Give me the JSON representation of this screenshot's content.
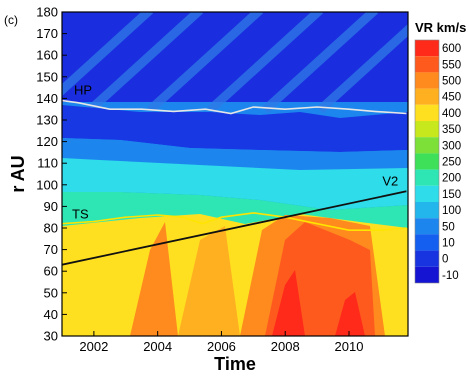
{
  "chart_data": {
    "type": "heatmap",
    "panel_label": "(c)",
    "xlabel": "Time",
    "ylabel": "r AU",
    "xlim": [
      2001.0,
      2011.85
    ],
    "ylim": [
      30,
      180
    ],
    "x_ticks": [
      2002,
      2004,
      2006,
      2008,
      2010
    ],
    "y_ticks": [
      30,
      40,
      50,
      60,
      70,
      80,
      90,
      100,
      110,
      120,
      130,
      140,
      150,
      160,
      170,
      180
    ],
    "colorbar": {
      "title": "VR km/s",
      "levels": [
        600,
        550,
        500,
        450,
        400,
        350,
        300,
        250,
        200,
        150,
        100,
        50,
        10,
        0,
        -10
      ],
      "colors": [
        "#ff2a1a",
        "#ff5a1e",
        "#ff8a1e",
        "#ffb020",
        "#ffe020",
        "#c8e81e",
        "#7ce038",
        "#3ee05a",
        "#2ee6b4",
        "#2edcea",
        "#22b6ec",
        "#1c86ee",
        "#145ef0",
        "#1834e0",
        "#1414d2"
      ]
    },
    "lines": [
      {
        "name": "HP",
        "label": "HP",
        "color": "#e6e6e6",
        "points": [
          [
            2001.0,
            139
          ],
          [
            2001.5,
            138
          ],
          [
            2002.5,
            135
          ],
          [
            2003.5,
            135
          ],
          [
            2004.5,
            134
          ],
          [
            2005.5,
            135
          ],
          [
            2006.3,
            133
          ],
          [
            2007.0,
            136
          ],
          [
            2008.0,
            135
          ],
          [
            2009.0,
            136
          ],
          [
            2010.0,
            135
          ],
          [
            2010.8,
            134
          ],
          [
            2011.8,
            133
          ]
        ]
      },
      {
        "name": "TS",
        "label": "TS",
        "color": "#ffe400",
        "points": [
          [
            2001.0,
            82
          ],
          [
            2002.0,
            83
          ],
          [
            2003.0,
            85
          ],
          [
            2004.0,
            86
          ],
          [
            2004.8,
            85
          ],
          [
            2005.4,
            82
          ],
          [
            2006.0,
            85
          ],
          [
            2007.0,
            87
          ],
          [
            2008.0,
            85
          ],
          [
            2009.0,
            82
          ],
          [
            2010.0,
            79
          ],
          [
            2011.0,
            79
          ],
          [
            2011.8,
            80
          ]
        ]
      },
      {
        "name": "V2",
        "label": "V2",
        "color": "#111111",
        "points": [
          [
            2001.0,
            63
          ],
          [
            2011.8,
            97
          ]
        ]
      }
    ]
  }
}
